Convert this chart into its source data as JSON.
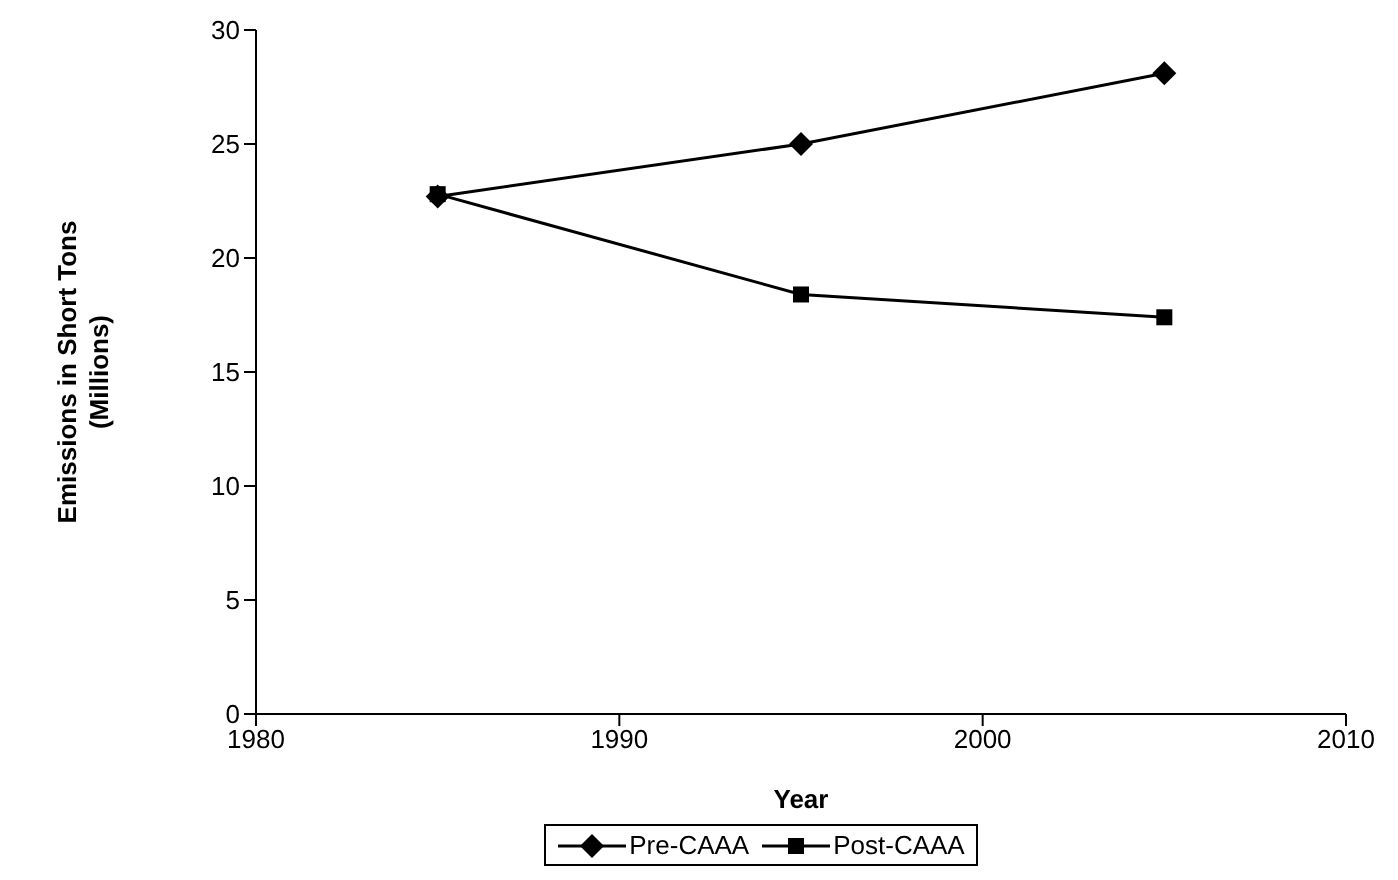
{
  "chart_data": {
    "type": "line",
    "xlabel": "Year",
    "ylabel": "Emissions in Short Tons (Millions)",
    "x": [
      1985,
      1995,
      2005
    ],
    "series": [
      {
        "name": "Pre-CAAA",
        "color": "#000000",
        "marker": "diamond",
        "values": [
          22.7,
          25.0,
          28.1
        ]
      },
      {
        "name": "Post-CAAA",
        "color": "#000000",
        "marker": "square",
        "values": [
          22.8,
          18.4,
          17.4
        ]
      }
    ],
    "xlim": [
      1980,
      2010
    ],
    "xticks": [
      1980,
      1990,
      2000,
      2010
    ],
    "ylim": [
      0,
      30
    ],
    "yticks": [
      0,
      5,
      10,
      15,
      20,
      25,
      30
    ],
    "grid": false,
    "legend": "bottom",
    "line_style": "solid"
  }
}
